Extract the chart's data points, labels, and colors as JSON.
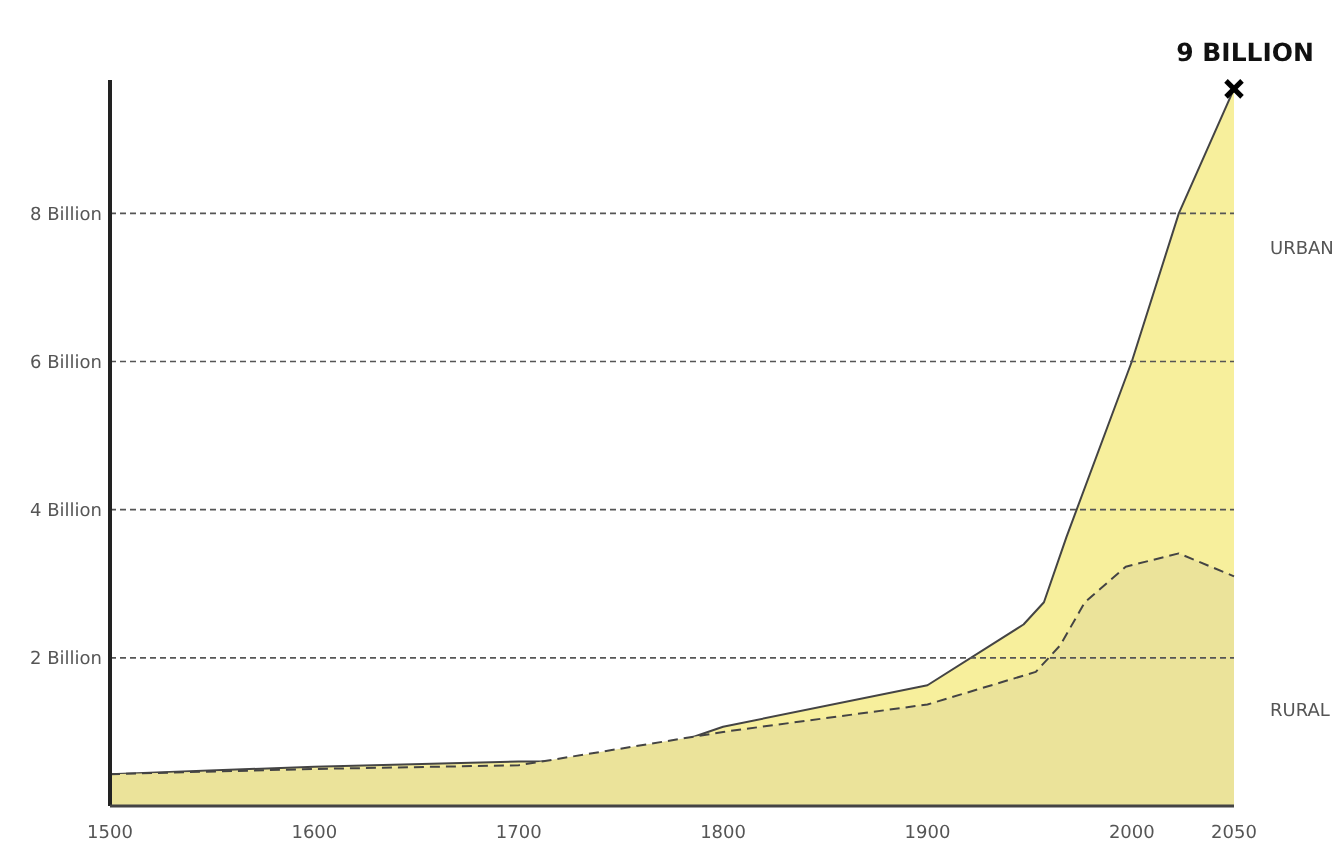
{
  "chart_data": {
    "type": "area",
    "annotations": [
      {
        "text": "9 BILLION",
        "x": 2050,
        "y": 9.68
      }
    ],
    "xlim": [
      1500,
      2050
    ],
    "xticks": [
      1500,
      1600,
      1700,
      1800,
      1900,
      2000,
      2050
    ],
    "ylim": [
      0,
      9.8
    ],
    "yticks": [
      {
        "value": 2,
        "label": "2 Billion"
      },
      {
        "value": 4,
        "label": "4 Billion"
      },
      {
        "value": 6,
        "label": "6 Billion"
      },
      {
        "value": 8,
        "label": "8 Billion"
      }
    ],
    "grid": "y",
    "series": [
      {
        "name": "URBAN",
        "color": "#f7ef9c",
        "line_style": "solid",
        "x": [
          1500,
          1600,
          1700,
          1720,
          1780,
          1800,
          1900,
          1947,
          1957,
          1968,
          2000,
          2023,
          2050
        ],
        "values": [
          0.43,
          0.53,
          0.6,
          0.6,
          0.88,
          1.07,
          1.63,
          2.45,
          2.75,
          3.63,
          6.0,
          8.0,
          9.68
        ]
      },
      {
        "name": "RURAL",
        "color": "#ebe39a",
        "line_style": "dashed",
        "x": [
          1500,
          1600,
          1700,
          1800,
          1900,
          1953,
          1965,
          1977,
          1997,
          2023,
          2050
        ],
        "values": [
          0.43,
          0.5,
          0.55,
          1.0,
          1.37,
          1.81,
          2.17,
          2.75,
          3.23,
          3.41,
          3.1
        ]
      }
    ]
  }
}
